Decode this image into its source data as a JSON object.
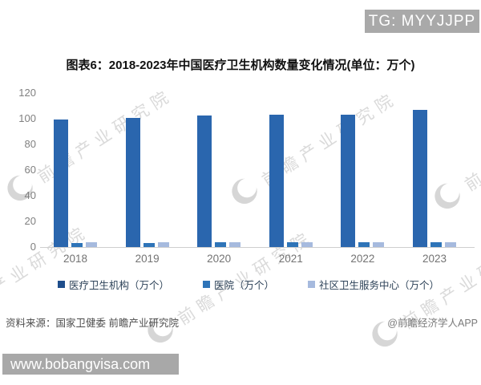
{
  "badge": {
    "text": "TG: MYYJJPP"
  },
  "title": "图表6：2018-2023年中国医疗卫生机构数量变化情况(单位：万个)",
  "watermark": {
    "text": "前瞻产业研究院",
    "logo": "crescent-swoosh-icon",
    "color": "#dadada"
  },
  "footer": {
    "source": "资料来源：国家卫健委 前瞻产业研究院",
    "credit": "@前瞻经济学人APP",
    "url": "www.bobangvisa.com"
  },
  "colors": {
    "series_main": "#2a66ae",
    "series_hospital": "#2e74b8",
    "series_community": "#a6bade",
    "badge_bg": "#a9a9a9",
    "url_bar_bg": "#a8a8a8"
  },
  "chart_data": {
    "type": "bar",
    "title": "图表6：2018-2023年中国医疗卫生机构数量变化情况(单位：万个)",
    "categories": [
      "2018",
      "2019",
      "2020",
      "2021",
      "2022",
      "2023"
    ],
    "series": [
      {
        "name": "医疗卫生机构（万个）",
        "color": "#2a66ae",
        "values": [
          99.7,
          100.8,
          102.3,
          103.1,
          103.3,
          107.1
        ]
      },
      {
        "name": "医院（万个）",
        "color": "#2e74b8",
        "values": [
          3.3,
          3.4,
          3.5,
          3.7,
          3.7,
          3.9
        ]
      },
      {
        "name": "社区卫生服务中心（万个）",
        "color": "#a6bade",
        "values": [
          3.5,
          3.5,
          3.5,
          3.6,
          3.6,
          3.6
        ]
      }
    ],
    "xlabel": "",
    "ylabel": "",
    "ylim": [
      0,
      120
    ],
    "yticks": [
      0,
      20,
      40,
      60,
      80,
      100,
      120
    ],
    "grid": false,
    "legend_position": "bottom"
  }
}
